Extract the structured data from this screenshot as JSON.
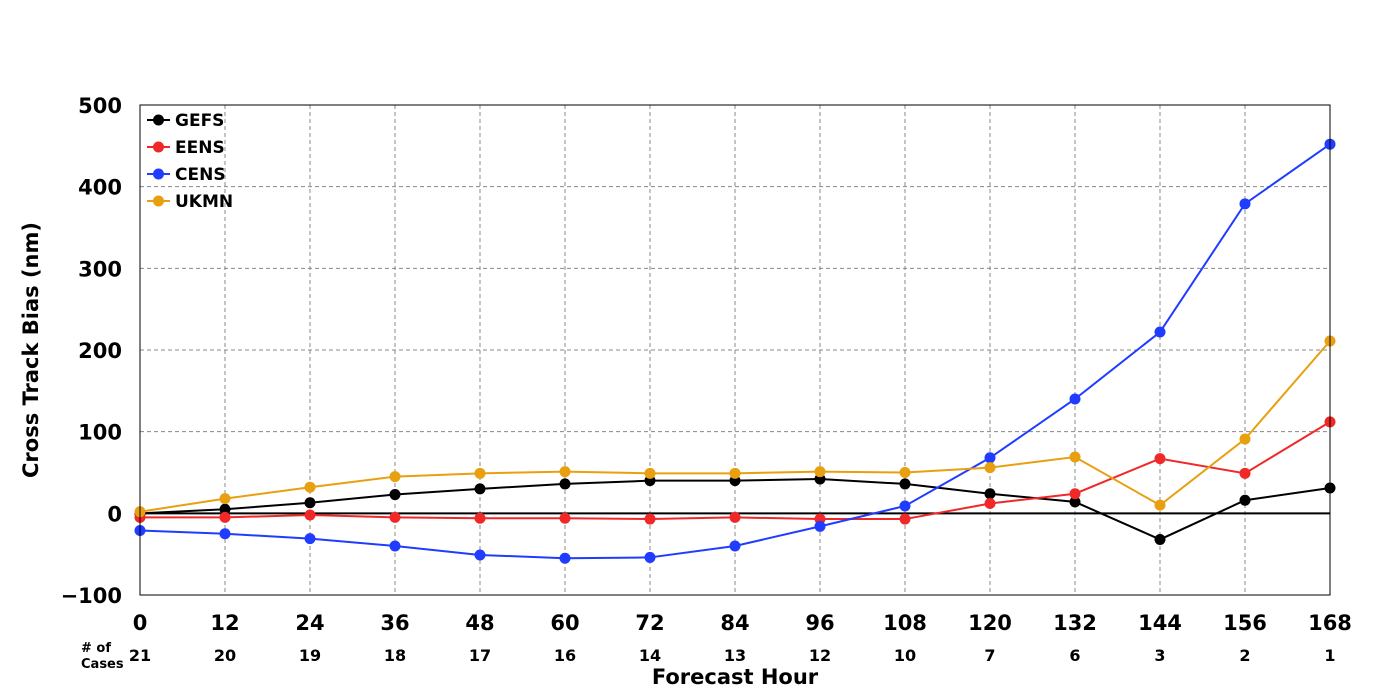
{
  "chart_data": {
    "type": "line",
    "title": "",
    "xlabel": "Forecast Hour",
    "ylabel": "Cross Track Bias (nm)",
    "x": [
      0,
      12,
      24,
      36,
      48,
      60,
      72,
      84,
      96,
      108,
      120,
      132,
      144,
      156,
      168
    ],
    "xlim": [
      0,
      168
    ],
    "ylim": [
      -100,
      500
    ],
    "yticks": [
      -100,
      0,
      100,
      200,
      300,
      400,
      500
    ],
    "ytick_labels": [
      "−100",
      "0",
      "100",
      "200",
      "300",
      "400",
      "500"
    ],
    "grid": true,
    "legend_position": "top-left",
    "cases_label_line1": "# of",
    "cases_label_line2": "Cases",
    "cases": [
      21,
      20,
      19,
      18,
      17,
      16,
      14,
      13,
      12,
      10,
      7,
      6,
      3,
      2,
      1
    ],
    "series": [
      {
        "name": "GEFS",
        "color": "#000000",
        "values": [
          0,
          5,
          13,
          23,
          30,
          36,
          40,
          40,
          42,
          36,
          24,
          14,
          -32,
          16,
          31
        ]
      },
      {
        "name": "EENS",
        "color": "#f02828",
        "values": [
          -5,
          -5,
          -2,
          -5,
          -6,
          -6,
          -7,
          -5,
          -7,
          -7,
          12,
          24,
          67,
          49,
          112
        ]
      },
      {
        "name": "CENS",
        "color": "#1f3cff",
        "values": [
          -21,
          -25,
          -31,
          -40,
          -51,
          -55,
          -54,
          -40,
          -16,
          9,
          68,
          140,
          222,
          379,
          452
        ]
      },
      {
        "name": "UKMN",
        "color": "#e8a010",
        "values": [
          2,
          18,
          32,
          45,
          49,
          51,
          49,
          49,
          51,
          50,
          56,
          69,
          10,
          91,
          211
        ]
      }
    ]
  }
}
